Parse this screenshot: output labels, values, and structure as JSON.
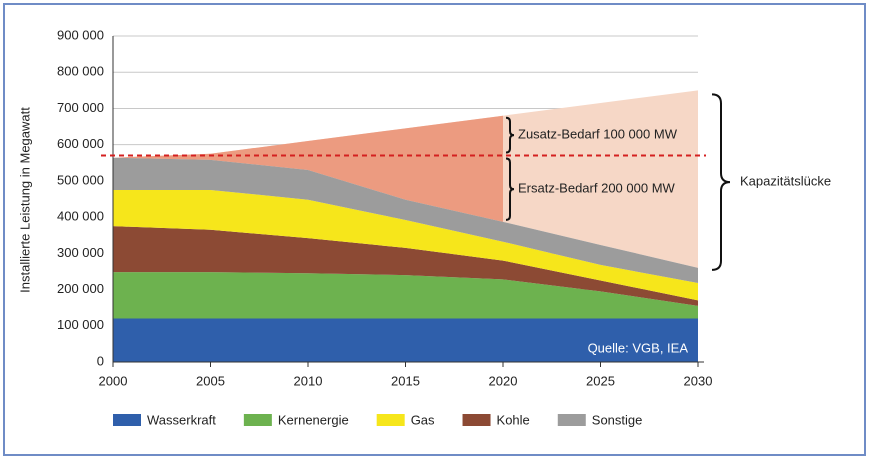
{
  "chart_data": {
    "type": "stacked_area",
    "y_label": "Installierte Leistung in Megawatt",
    "x": [
      2000,
      2005,
      2010,
      2015,
      2020,
      2025,
      2030
    ],
    "xlim": [
      2000,
      2030
    ],
    "xticks": [
      2000,
      2005,
      2010,
      2015,
      2020,
      2025,
      2030
    ],
    "ylim": [
      0,
      900000
    ],
    "yticks": [
      0,
      {
        "value": 100000,
        "label": "100 000"
      },
      {
        "value": 200000,
        "label": "200 000"
      },
      {
        "value": 300000,
        "label": "300 000"
      },
      {
        "value": 400000,
        "label": "400 000"
      },
      {
        "value": 500000,
        "label": "500 000"
      },
      {
        "value": 600000,
        "label": "600 000"
      },
      {
        "value": 700000,
        "label": "700 000"
      },
      {
        "value": 800000,
        "label": "800 000"
      },
      {
        "value": 900000,
        "label": "900 000"
      }
    ],
    "grid": true,
    "series": [
      {
        "name": "Wasserkraft",
        "color": "#2f5fab",
        "values": [
          120000,
          120000,
          120000,
          120000,
          120000,
          120000,
          120000
        ]
      },
      {
        "name": "Kernenergie",
        "color": "#6db24f",
        "values": [
          128000,
          128000,
          125000,
          120000,
          108000,
          75000,
          35000
        ]
      },
      {
        "name": "Kohle",
        "color": "#8c4a34",
        "values": [
          127000,
          117000,
          97000,
          75000,
          52000,
          30000,
          15000
        ]
      },
      {
        "name": "Gas",
        "color": "#f6e61b",
        "values": [
          100000,
          110000,
          106000,
          77000,
          52000,
          43000,
          48000
        ]
      },
      {
        "name": "Sonstige",
        "color": "#9c9c9c",
        "values": [
          89000,
          83000,
          82000,
          56000,
          55000,
          55000,
          42000
        ]
      }
    ],
    "demand": {
      "values": [
        564000,
        575000,
        610000,
        645000,
        680000,
        715000,
        750000
      ],
      "color": "#ec9b80",
      "color_later": "#f6d7c6",
      "split_x": 2020
    },
    "reference_line": {
      "value": 570000,
      "color": "#d42020"
    },
    "annotations": {
      "zusatz": "Zusatz-Bedarf 100 000 MW",
      "ersatz": "Ersatz-Bedarf 200 000 MW",
      "luecke": "Kapazitätslücke",
      "source": "Quelle: VGB, IEA"
    },
    "legend_order": [
      0,
      1,
      3,
      2,
      4
    ]
  }
}
